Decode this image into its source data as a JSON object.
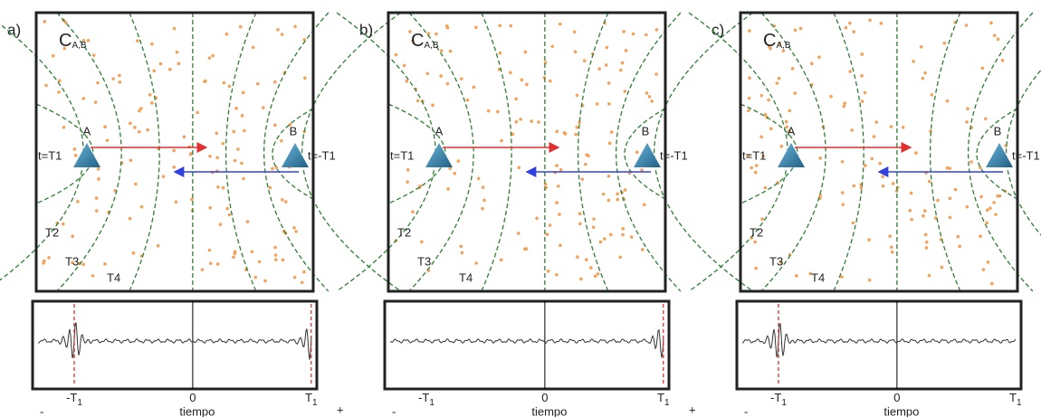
{
  "panels": [
    {
      "label": "a)",
      "field": {
        "title": {
          "base": "C",
          "sub": "A,B"
        },
        "station_a": "A",
        "station_b": "B",
        "time_a": "t=T1",
        "time_b": "t=-T1",
        "contours": [
          "T2",
          "T3",
          "T4"
        ]
      },
      "trace": {
        "axis": [
          {
            "base": "-T",
            "sub": "1"
          },
          {
            "base": "0"
          },
          {
            "base": "T",
            "sub": "1"
          }
        ],
        "xlabel": "tiempo",
        "minus": "-",
        "plus": "+"
      }
    },
    {
      "label": "b)",
      "field": {
        "title": {
          "base": "C",
          "sub": "A,B"
        },
        "station_a": "A",
        "station_b": "B",
        "time_a": "t=T1",
        "time_b": "t=-T1",
        "contours": [
          "T2",
          "T3",
          "T4"
        ]
      },
      "trace": {
        "axis": [
          {
            "base": "-T",
            "sub": "1"
          },
          {
            "base": "0"
          },
          {
            "base": "T",
            "sub": "1"
          }
        ],
        "xlabel": "tiempo",
        "minus": "-",
        "plus": "+"
      }
    },
    {
      "label": "c)",
      "field": {
        "title": {
          "base": "C",
          "sub": "A,B"
        },
        "station_a": "A",
        "station_b": "B",
        "time_a": "t=T1",
        "time_b": "t=-T1",
        "contours": [
          "T2",
          "T3",
          "T4"
        ]
      },
      "trace": {
        "axis": [
          {
            "base": "-T",
            "sub": "1"
          },
          {
            "base": "0"
          },
          {
            "base": "T",
            "sub": "1"
          }
        ],
        "xlabel": "tiempo",
        "minus": "-",
        "plus": "+"
      }
    }
  ]
}
